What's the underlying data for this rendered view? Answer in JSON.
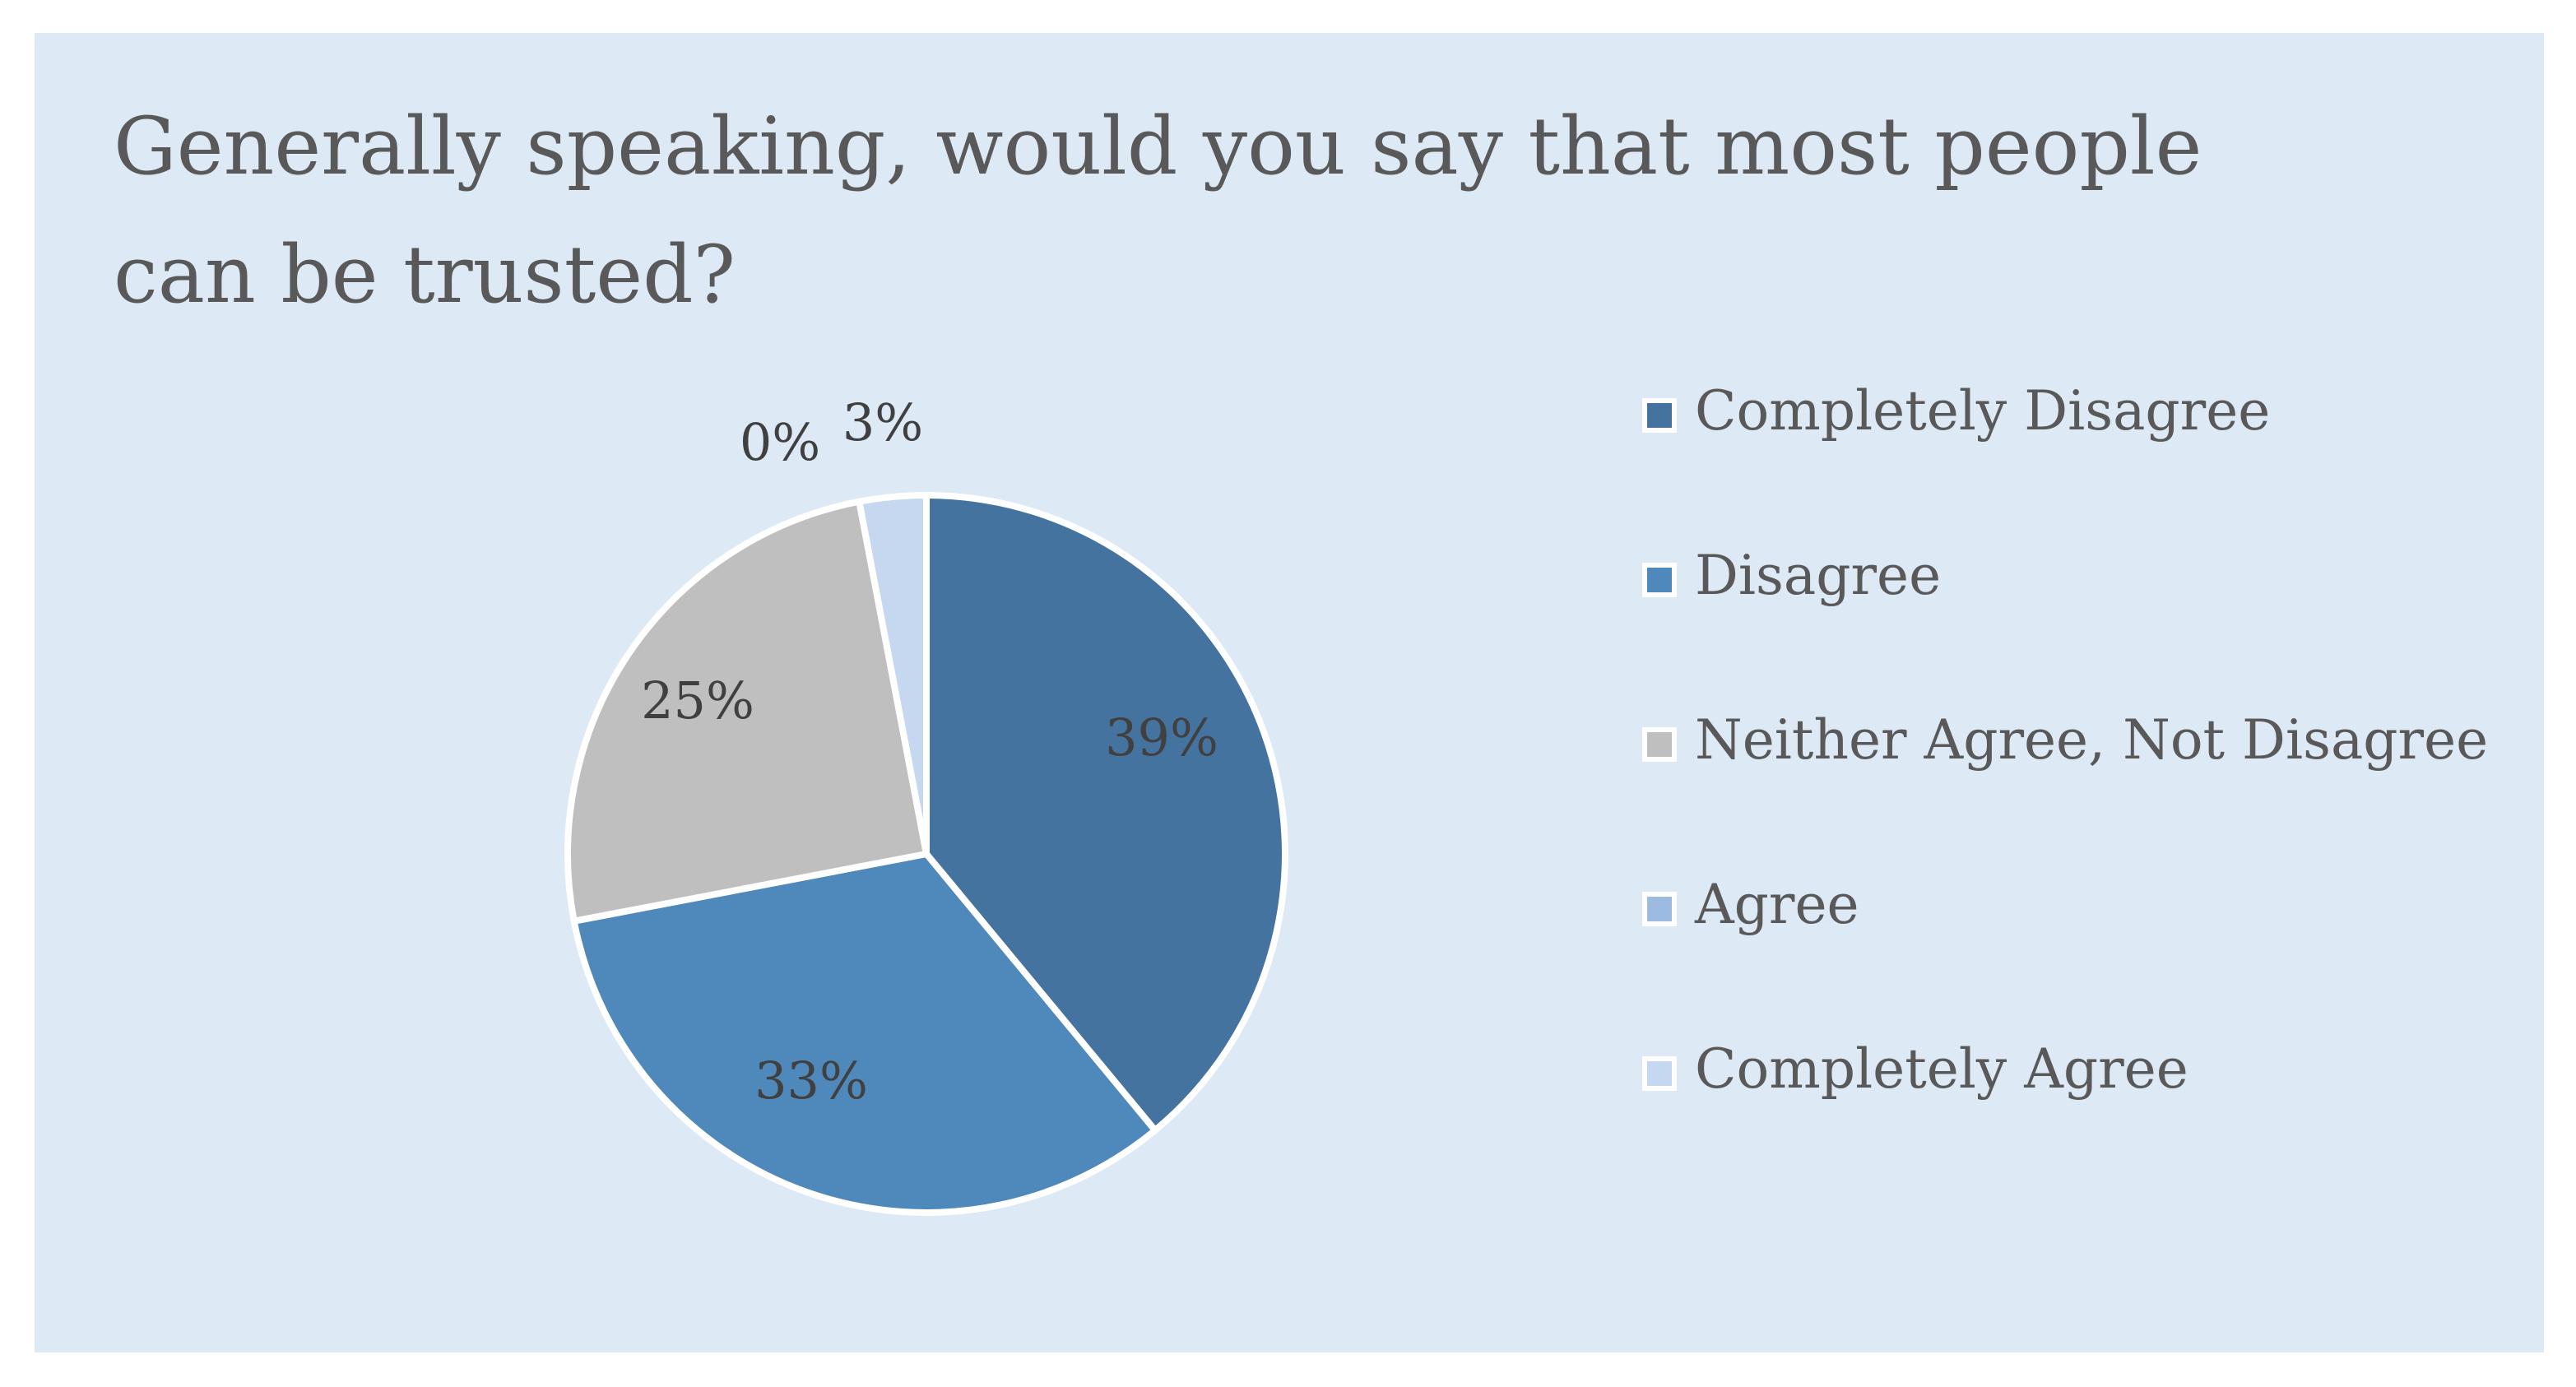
{
  "chart_data": {
    "type": "pie",
    "title": "Generally speaking, would you say that most people can be trusted?",
    "categories": [
      "Completely Disagree",
      "Disagree",
      "Neither Agree, Not Disagree",
      "Agree",
      "Completely Agree"
    ],
    "values": [
      39,
      33,
      25,
      0,
      3
    ],
    "value_labels": [
      "39%",
      "33%",
      "25%",
      "0%",
      "3%"
    ],
    "colors": [
      "#44739f",
      "#4f88bb",
      "#bfbfbf",
      "#9dbbe0",
      "#c5d8ef"
    ],
    "legend_position": "right",
    "background": "#dde9f5"
  }
}
